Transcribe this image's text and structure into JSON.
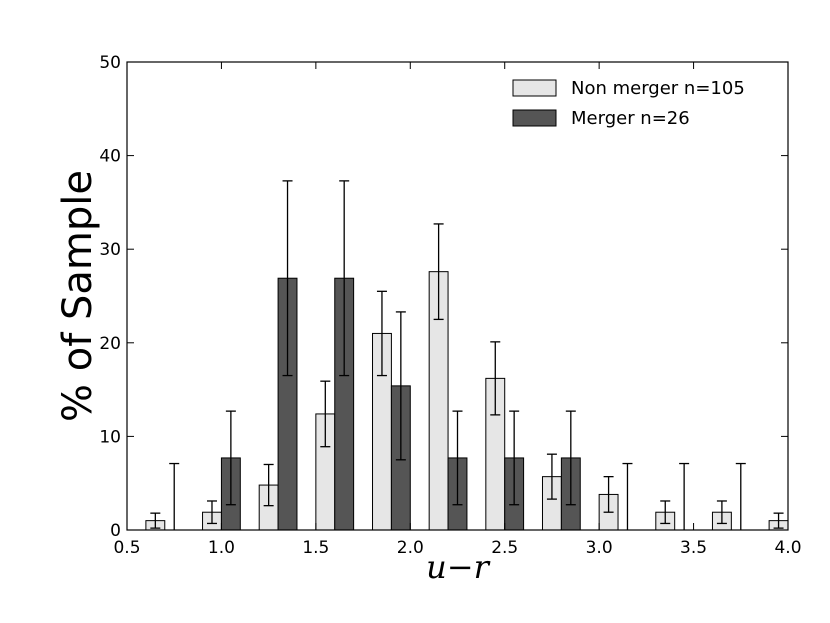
{
  "chart_data": {
    "type": "bar",
    "xlabel": "u−r",
    "ylabel": "% of Sample",
    "xlim": [
      0.5,
      4.0
    ],
    "ylim": [
      0,
      50
    ],
    "xticks": [
      "0.5",
      "1.0",
      "1.5",
      "2.0",
      "2.5",
      "3.0",
      "3.5",
      "4.0"
    ],
    "yticks": [
      "0",
      "10",
      "20",
      "30",
      "40",
      "50"
    ],
    "bin_width": 0.1,
    "grid": false,
    "legend_position": "top-right",
    "series": [
      {
        "name": "Non merger n=105",
        "color": "#e6e6e6",
        "x": [
          0.65,
          0.95,
          1.25,
          1.55,
          1.85,
          2.15,
          2.45,
          2.75,
          3.05,
          3.35,
          3.65,
          3.95
        ],
        "values": [
          1.0,
          1.9,
          4.8,
          12.4,
          21.0,
          27.6,
          16.2,
          5.7,
          3.8,
          1.9,
          1.9,
          1.0
        ],
        "errors": [
          0.8,
          1.2,
          2.2,
          3.5,
          4.5,
          5.1,
          3.9,
          2.4,
          1.9,
          1.2,
          1.2,
          0.8
        ]
      },
      {
        "name": "Merger n=26",
        "color": "#555555",
        "x": [
          0.75,
          1.05,
          1.35,
          1.65,
          1.95,
          2.25,
          2.55,
          2.85,
          3.15,
          3.45,
          3.75
        ],
        "values": [
          0.0,
          7.7,
          26.9,
          26.9,
          15.4,
          7.7,
          7.7,
          7.7,
          0.0,
          0.0,
          0.0
        ],
        "errors": [
          7.1,
          5.0,
          10.4,
          10.4,
          7.9,
          5.0,
          5.0,
          5.0,
          7.1,
          7.1,
          7.1
        ]
      }
    ]
  }
}
